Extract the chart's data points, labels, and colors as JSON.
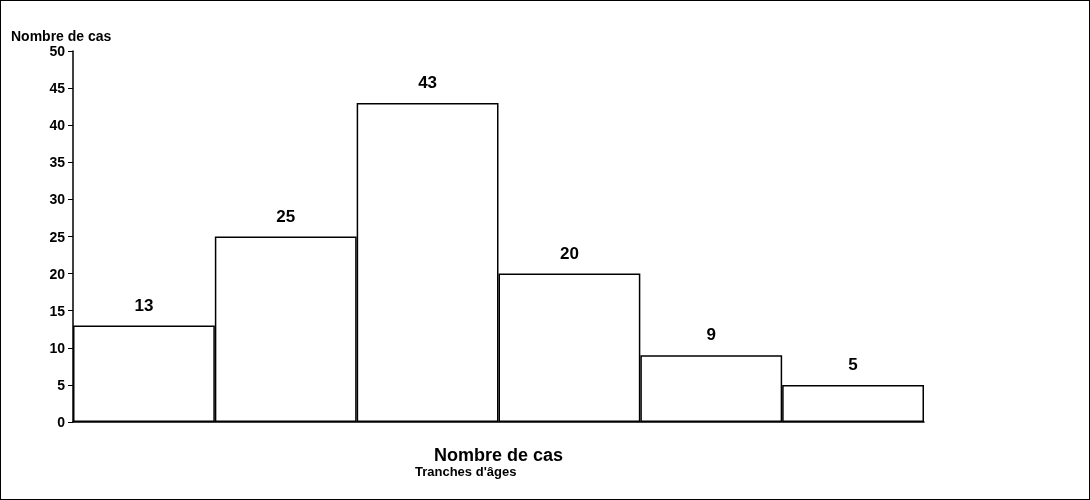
{
  "chart_data": {
    "type": "bar",
    "ylabel": "Nombre de cas",
    "xlabel": "Nombre de cas",
    "annotations": [
      "Tranches d'âges"
    ],
    "categories": [
      null,
      null,
      null,
      null,
      null,
      null
    ],
    "values": [
      13,
      25,
      43,
      20,
      9,
      5
    ],
    "color": "#ffffff",
    "data_labels": true,
    "ylim": [
      0,
      50
    ],
    "yticks": [
      0,
      5,
      10,
      15,
      20,
      25,
      30,
      35,
      40,
      45,
      50
    ],
    "grid": false
  }
}
